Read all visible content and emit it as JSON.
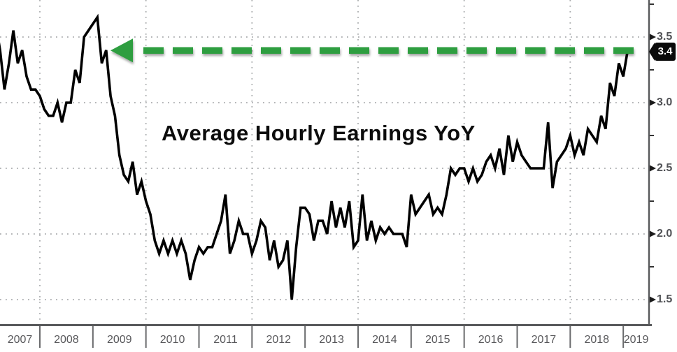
{
  "title": "Average Hourly Earnings YoY",
  "annotation": {
    "label": "3.4",
    "level": 3.4,
    "arrow_direction": "left",
    "note": "green dashed horizontal line from latest point back to early-2009 peak"
  },
  "y_axis": {
    "side": "right",
    "labels": [
      "3.5",
      "3.0",
      "2.5",
      "2.0",
      "1.5"
    ],
    "major_ticks": [
      3.5,
      3.0,
      2.5,
      2.0,
      1.5
    ],
    "minor_ticks": [
      3.75,
      3.25,
      2.75,
      2.25,
      1.75
    ]
  },
  "x_axis": {
    "labels": [
      "2007",
      "2008",
      "2009",
      "2010",
      "2011",
      "2012",
      "2013",
      "2014",
      "2015",
      "2016",
      "2017",
      "2018",
      "2019"
    ],
    "gridline_years": [
      2008,
      2010,
      2012,
      2014,
      2016,
      2018
    ]
  },
  "colors": {
    "line": "#000000",
    "annotation_green": "#2f9e41",
    "axis": "#58595b",
    "grid": "#a9abad",
    "tick": "#6a6b6d",
    "label_gray": "#58585b",
    "y_label_gray": "#515256",
    "tag_bg": "#0a0a0a",
    "tag_text": "#ffffff",
    "title_color": "#0c0c0c",
    "background": "#ffffff"
  },
  "chart_data": {
    "type": "line",
    "title": "Average Hourly Earnings YoY",
    "unit": "percent",
    "frequency": "monthly",
    "x_start": "2007-03",
    "x_end": "2019-02",
    "ylim_visible": [
      1.3,
      3.78
    ],
    "y_ticks": [
      1.5,
      2.0,
      2.5,
      3.0,
      3.5
    ],
    "x_tick_years": [
      2007,
      2008,
      2009,
      2010,
      2011,
      2012,
      2013,
      2014,
      2015,
      2016,
      2017,
      2018,
      2019
    ],
    "grid": "dotted",
    "legend": "none",
    "last_value_label": "3.4",
    "series": [
      {
        "name": "Average Hourly Earnings YoY (%)",
        "values": [
          3.6,
          3.4,
          3.1,
          3.3,
          3.55,
          3.3,
          3.4,
          3.2,
          3.1,
          3.1,
          3.05,
          2.95,
          2.9,
          2.9,
          3.0,
          2.85,
          3.0,
          3.0,
          3.25,
          3.15,
          3.5,
          3.55,
          3.6,
          3.65,
          3.3,
          3.4,
          3.05,
          2.9,
          2.6,
          2.45,
          2.4,
          2.55,
          2.3,
          2.4,
          2.25,
          2.15,
          1.95,
          1.85,
          1.95,
          1.85,
          1.95,
          1.85,
          1.95,
          1.85,
          1.65,
          1.8,
          1.9,
          1.85,
          1.9,
          1.9,
          2.0,
          2.1,
          2.3,
          1.85,
          1.95,
          2.1,
          2.0,
          2.0,
          1.85,
          1.95,
          2.1,
          2.05,
          1.8,
          1.95,
          1.75,
          1.8,
          1.95,
          1.5,
          1.9,
          2.2,
          2.2,
          2.15,
          1.95,
          2.1,
          2.1,
          2.0,
          2.25,
          2.05,
          2.2,
          2.05,
          2.25,
          1.9,
          1.95,
          2.3,
          1.95,
          2.1,
          1.95,
          2.05,
          2.0,
          2.05,
          2.0,
          2.0,
          2.0,
          1.9,
          2.3,
          2.15,
          2.2,
          2.25,
          2.3,
          2.15,
          2.2,
          2.15,
          2.3,
          2.5,
          2.45,
          2.5,
          2.5,
          2.4,
          2.5,
          2.4,
          2.45,
          2.55,
          2.6,
          2.5,
          2.65,
          2.45,
          2.75,
          2.55,
          2.7,
          2.6,
          2.55,
          2.5,
          2.5,
          2.5,
          2.5,
          2.85,
          2.35,
          2.55,
          2.6,
          2.65,
          2.75,
          2.6,
          2.7,
          2.6,
          2.8,
          2.75,
          2.7,
          2.9,
          2.8,
          3.15,
          3.05,
          3.3,
          3.2,
          3.4
        ]
      }
    ]
  }
}
